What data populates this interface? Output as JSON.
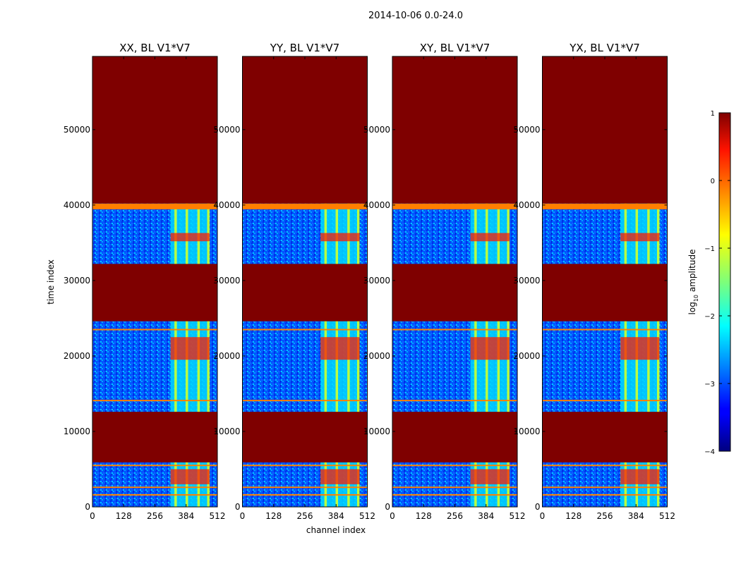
{
  "figure": {
    "suptitle": "2014-10-06 0.0-24.0"
  },
  "chart_data": {
    "type": "heatmap",
    "shared": {
      "xlabel": "channel index",
      "ylabel": "time index",
      "xlim": [
        0,
        512
      ],
      "ylim": [
        0,
        59700
      ],
      "xticks": [
        0,
        128,
        256,
        384,
        512
      ],
      "yticks": [
        0,
        10000,
        20000,
        30000,
        40000,
        50000
      ]
    },
    "panels": [
      {
        "title": "XX, BL V1*V7"
      },
      {
        "title": "YY, BL V1*V7"
      },
      {
        "title": "XY, BL V1*V7"
      },
      {
        "title": "YX, BL V1*V7"
      }
    ],
    "colorbar": {
      "label_main": "log",
      "label_sub": "10",
      "label_rest": " amplitude",
      "range": [
        -4,
        1
      ],
      "ticks": [
        1,
        0,
        -1,
        -2,
        -3,
        -4
      ]
    },
    "regions": {
      "flagged_time_ranges": [
        [
          40200,
          59700
        ],
        [
          24600,
          32200
        ],
        [
          12600,
          5900
        ]
      ],
      "rfi_channel_range": [
        320,
        480
      ],
      "rfi_channel_stripes": [
        336,
        346,
        382,
        392,
        430,
        440,
        470,
        480
      ],
      "horizontal_lines_time": [
        40000,
        23400,
        14000,
        5400,
        2500,
        1500
      ],
      "strong_rfi_time_bands": [
        [
          35200,
          36300
        ],
        [
          3000,
          5000
        ],
        [
          19500,
          22500
        ]
      ]
    },
    "colors": {
      "flagged": "#7f0000",
      "background": "#0040ff",
      "background_alt": "#1a7dff",
      "rfi_mid": "#b9ff40",
      "rfi_high": "#ff1a00",
      "line": "#ff7f00",
      "cyan": "#00d8ff"
    }
  }
}
